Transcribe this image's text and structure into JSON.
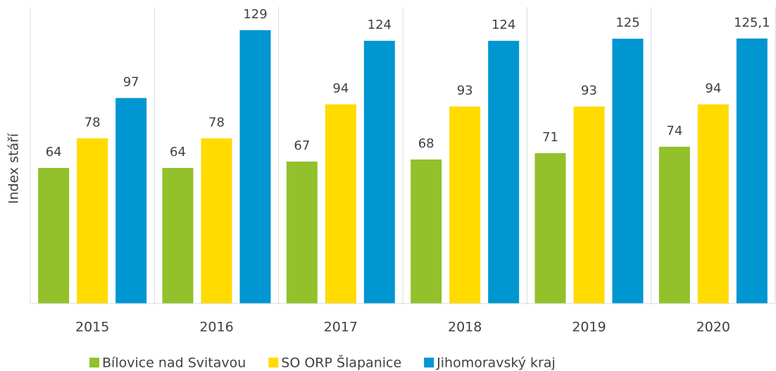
{
  "chart_data": {
    "type": "bar",
    "y_label": "Index stáří",
    "categories": [
      "2015",
      "2016",
      "2017",
      "2018",
      "2019",
      "2020"
    ],
    "series": [
      {
        "name": "Bílovice nad Svitavou",
        "color": "#92c12b",
        "values": [
          64,
          64,
          67,
          68,
          71,
          74
        ]
      },
      {
        "name": "SO ORP Šlapanice",
        "color": "#ffdb00",
        "values": [
          78,
          78,
          94,
          93,
          93,
          94
        ]
      },
      {
        "name": "Jihomoravský kraj",
        "color": "#0096d2",
        "values": [
          97,
          129,
          124,
          124,
          125,
          125.1
        ],
        "value_labels": [
          "97",
          "129",
          "124",
          "124",
          "125",
          "125,1"
        ]
      }
    ],
    "legend": "bottom"
  }
}
